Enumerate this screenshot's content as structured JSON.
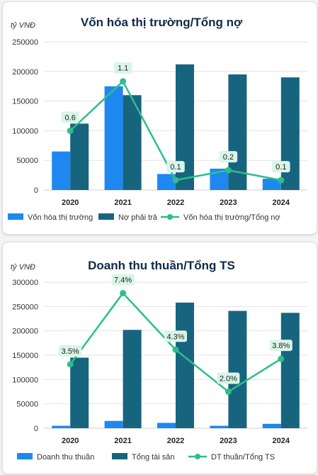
{
  "colors": {
    "bar_primary": "#1e88f0",
    "bar_secondary": "#17647f",
    "line": "#2dbe8a",
    "label_bg": "#d8f5e8",
    "grid": "#e3e3e3"
  },
  "chart_data": [
    {
      "type": "bar",
      "title": "Vốn hóa thị trường/Tổng nợ",
      "unit_label": "tỷ VNĐ",
      "categories": [
        "2020",
        "2021",
        "2022",
        "2023",
        "2024"
      ],
      "yticks": [
        "0",
        "50000",
        "100000",
        "150000",
        "200000",
        "250000"
      ],
      "ylim": [
        0,
        250000
      ],
      "series": [
        {
          "name": "Vốn hóa thị trường",
          "kind": "bar",
          "values": [
            65000,
            175000,
            27000,
            36000,
            19000
          ]
        },
        {
          "name": "Nợ phải trả",
          "kind": "bar",
          "values": [
            112000,
            160000,
            212000,
            195000,
            190000
          ]
        },
        {
          "name": "Vốn hóa thị trường/Tổng nợ",
          "kind": "line",
          "values": [
            0.6,
            1.1,
            0.1,
            0.2,
            0.1
          ],
          "labels": [
            "0.6",
            "1.1",
            "0.1",
            "0.2",
            "0.1"
          ],
          "ylim": [
            0,
            1.5
          ]
        }
      ],
      "grid": true,
      "legend": "bottom"
    },
    {
      "type": "bar",
      "title": "Doanh thu thuần/Tổng TS",
      "unit_label": "tỷ VNĐ",
      "categories": [
        "2020",
        "2021",
        "2022",
        "2023",
        "2024"
      ],
      "yticks": [
        "0",
        "50000",
        "100000",
        "150000",
        "200000",
        "250000",
        "300000"
      ],
      "ylim": [
        0,
        300000
      ],
      "series": [
        {
          "name": "Doanh thu thuần",
          "kind": "bar",
          "values": [
            5000,
            15000,
            11000,
            5000,
            9000
          ]
        },
        {
          "name": "Tổng tài sản",
          "kind": "bar",
          "values": [
            145000,
            202000,
            258000,
            241000,
            237000
          ]
        },
        {
          "name": "DT thuần/Tổng TS",
          "kind": "line",
          "values": [
            3.5,
            7.4,
            4.3,
            2.0,
            3.8
          ],
          "labels": [
            "3.5%",
            "7.4%",
            "4.3%",
            "2.0%",
            "3.8%"
          ],
          "ylim": [
            0,
            8
          ]
        }
      ],
      "grid": true,
      "legend": "bottom"
    }
  ]
}
